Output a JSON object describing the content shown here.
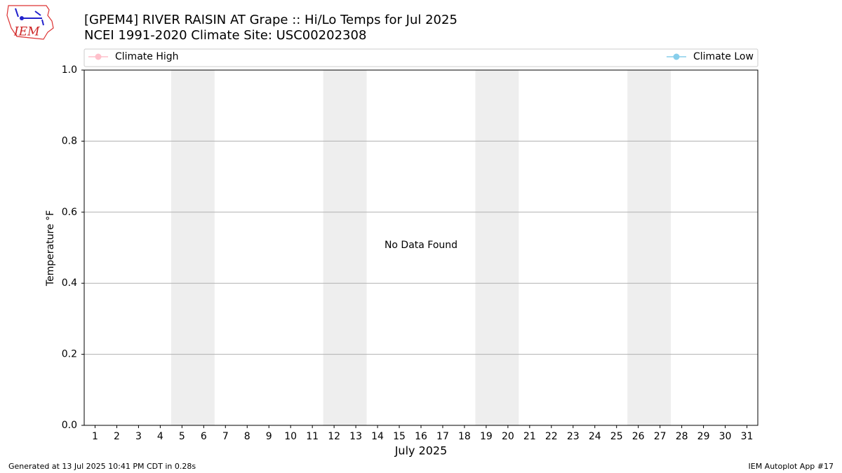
{
  "chart_data": {
    "type": "line",
    "title": "[GPEM4] RIVER RAISIN  AT Grape :: Hi/Lo Temps for Jul 2025",
    "subtitle": "NCEI 1991-2020 Climate Site: USC00202308",
    "logo": "IEM",
    "xlabel": "July 2025",
    "ylabel": "Temperature °F",
    "annotation": "No Data Found",
    "footer_left": "Generated at 13 Jul 2025 10:41 PM CDT in 0.28s",
    "footer_right": "IEM Autoplot App #17",
    "categories": [
      "1",
      "2",
      "3",
      "4",
      "5",
      "6",
      "7",
      "8",
      "9",
      "10",
      "11",
      "12",
      "13",
      "14",
      "15",
      "16",
      "17",
      "18",
      "19",
      "20",
      "21",
      "22",
      "23",
      "24",
      "25",
      "26",
      "27",
      "28",
      "29",
      "30",
      "31"
    ],
    "series": [
      {
        "name": "Climate High",
        "color": "#ffc0cb",
        "values": [
          null,
          null,
          null,
          null,
          null,
          null,
          null,
          null,
          null,
          null,
          null,
          null,
          null,
          null,
          null,
          null,
          null,
          null,
          null,
          null,
          null,
          null,
          null,
          null,
          null,
          null,
          null,
          null,
          null,
          null,
          null
        ]
      },
      {
        "name": "Climate Low",
        "color": "#87ceeb",
        "values": [
          null,
          null,
          null,
          null,
          null,
          null,
          null,
          null,
          null,
          null,
          null,
          null,
          null,
          null,
          null,
          null,
          null,
          null,
          null,
          null,
          null,
          null,
          null,
          null,
          null,
          null,
          null,
          null,
          null,
          null,
          null
        ]
      }
    ],
    "weekend_bands": [
      [
        5,
        6
      ],
      [
        12,
        13
      ],
      [
        19,
        20
      ],
      [
        26,
        27
      ]
    ],
    "band_color": "#eeeeee",
    "ylim": [
      0,
      1
    ],
    "yticks": [
      {
        "value": 0,
        "label": "0.0"
      },
      {
        "value": 0.2,
        "label": "0.2"
      },
      {
        "value": 0.4,
        "label": "0.4"
      },
      {
        "value": 0.6,
        "label": "0.6"
      },
      {
        "value": 0.8,
        "label": "0.8"
      },
      {
        "value": 1,
        "label": "1.0"
      }
    ],
    "grid": true
  }
}
